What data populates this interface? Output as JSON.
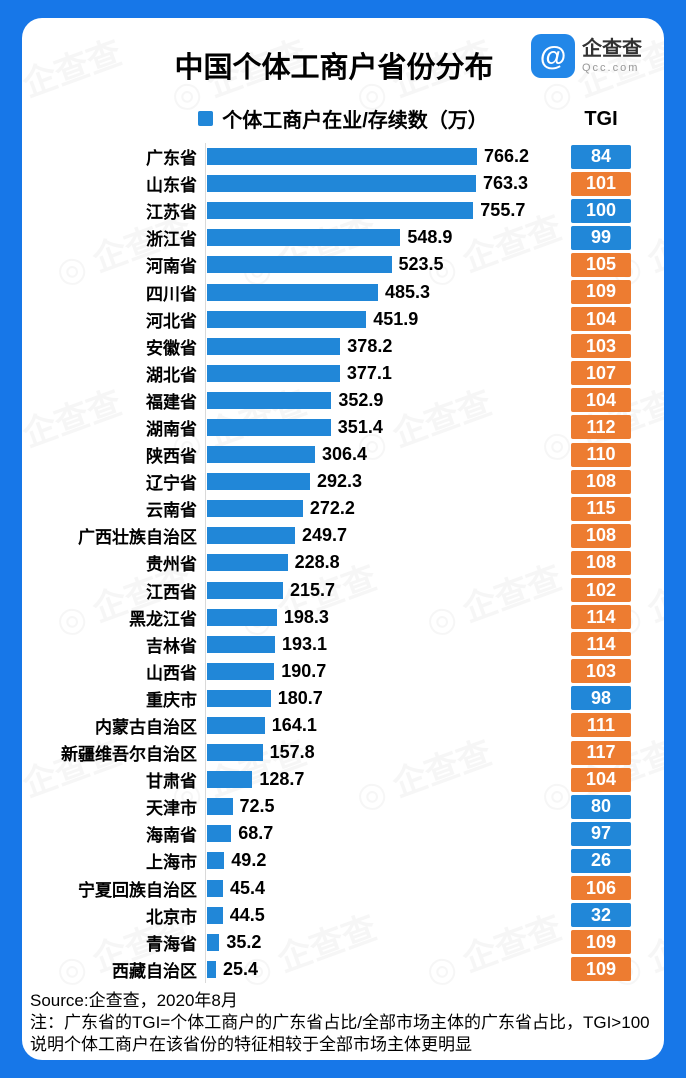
{
  "header": {
    "title": "中国个体工商户省份分布",
    "logo_brand": "企查查",
    "logo_domain": "Qcc.com",
    "logo_glyph": "@"
  },
  "legend": {
    "label": "个体工商户在业/存续数（万）"
  },
  "tgi_column_header": "TGI",
  "watermark_text": "企查查",
  "colors": {
    "frame_blue": "#1777E8",
    "bar_blue": "#2187D8",
    "tgi_blue": "#2187D8",
    "tgi_orange": "#ED7C31"
  },
  "footer": {
    "source": "Source:企查查，2020年8月",
    "note": "注：广东省的TGI=个体工商户的广东省占比/全部市场主体的广东省占比，TGI>100说明个体工商户在该省份的特征相较于全部市场主体更明显"
  },
  "chart_data": {
    "type": "bar",
    "orientation": "horizontal",
    "title": "中国个体工商户省份分布",
    "series_label": "个体工商户在业/存续数（万）",
    "value_unit": "万",
    "xlim": [
      0,
      800
    ],
    "grid": false,
    "legend_position": "top-center",
    "tgi_color_rule": "TGI>100 orange, TGI<=100 blue",
    "categories": [
      "广东省",
      "山东省",
      "江苏省",
      "浙江省",
      "河南省",
      "四川省",
      "河北省",
      "安徽省",
      "湖北省",
      "福建省",
      "湖南省",
      "陕西省",
      "辽宁省",
      "云南省",
      "广西壮族自治区",
      "贵州省",
      "江西省",
      "黑龙江省",
      "吉林省",
      "山西省",
      "重庆市",
      "内蒙古自治区",
      "新疆维吾尔自治区",
      "甘肃省",
      "天津市",
      "海南省",
      "上海市",
      "宁夏回族自治区",
      "北京市",
      "青海省",
      "西藏自治区"
    ],
    "values": [
      766.2,
      763.3,
      755.7,
      548.9,
      523.5,
      485.3,
      451.9,
      378.2,
      377.1,
      352.9,
      351.4,
      306.4,
      292.3,
      272.2,
      249.7,
      228.8,
      215.7,
      198.3,
      193.1,
      190.7,
      180.7,
      164.1,
      157.8,
      128.7,
      72.5,
      68.7,
      49.2,
      45.4,
      44.5,
      35.2,
      25.4
    ],
    "tgi": [
      84,
      101,
      100,
      99,
      105,
      109,
      104,
      103,
      107,
      104,
      112,
      110,
      108,
      115,
      108,
      108,
      102,
      114,
      114,
      103,
      98,
      111,
      117,
      104,
      80,
      97,
      26,
      106,
      32,
      109,
      109
    ]
  }
}
